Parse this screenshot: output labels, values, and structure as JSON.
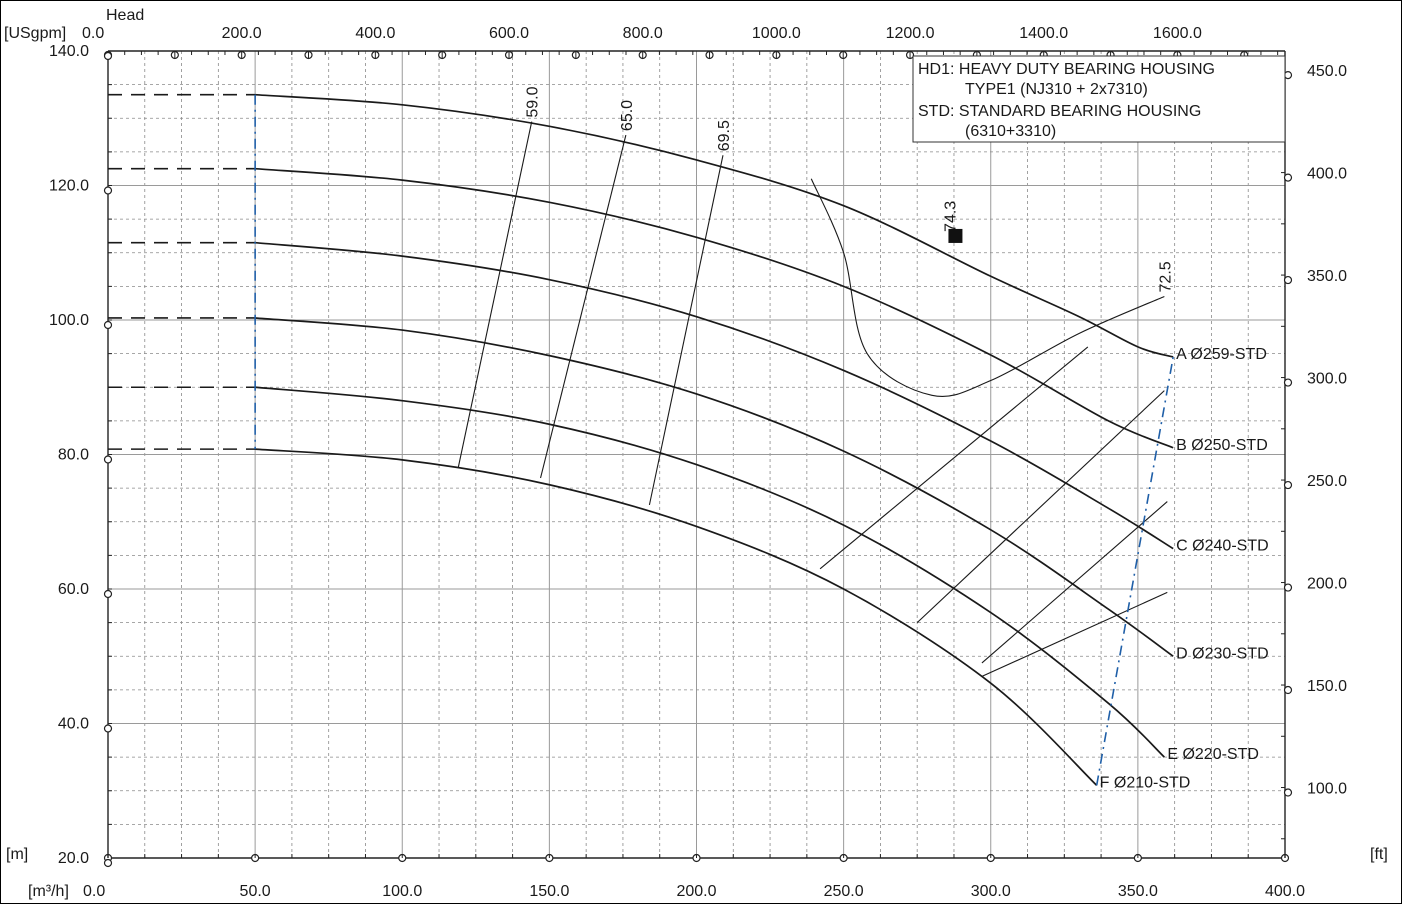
{
  "chart_data": {
    "type": "line",
    "title": "",
    "axes": {
      "x_bottom": {
        "unit": "[m³/h]",
        "range": [
          0,
          400
        ],
        "ticks": [
          "0.0",
          "50.0",
          "100.0",
          "150.0",
          "200.0",
          "250.0",
          "300.0",
          "350.0",
          "400.0"
        ]
      },
      "x_top": {
        "unit": "[USgpm]",
        "range": [
          0,
          1761
        ],
        "ticks": [
          "0.0",
          "200.0",
          "400.0",
          "600.0",
          "800.0",
          "1000.0",
          "1200.0",
          "1400.0",
          "1600.0"
        ]
      },
      "y_left": {
        "title": "Head",
        "unit": "[m]",
        "range": [
          20,
          140
        ],
        "ticks": [
          "20.0",
          "40.0",
          "60.0",
          "80.0",
          "100.0",
          "120.0",
          "140.0"
        ]
      },
      "y_right": {
        "unit": "[ft]",
        "ticks": [
          "100.0",
          "150.0",
          "200.0",
          "250.0",
          "300.0",
          "350.0",
          "400.0",
          "450.0"
        ]
      },
      "grid": true
    },
    "legend": {
      "placement": "top-right",
      "lines": [
        "HD1: HEAVY DUTY BEARING HOUSING",
        "TYPE1 (NJ310 + 2x7310)",
        "STD: STANDARD BEARING HOUSING",
        "(6310+3310)"
      ]
    },
    "series": [
      {
        "letter": "A",
        "label": "Ø259-STD",
        "x": [
          50,
          100,
          150,
          200,
          250,
          300,
          330,
          350,
          362
        ],
        "y": [
          133.5,
          132,
          128.8,
          123.8,
          117,
          106.5,
          100.5,
          96,
          94.5
        ]
      },
      {
        "letter": "B",
        "label": "Ø250-STD",
        "x": [
          50,
          100,
          150,
          200,
          250,
          300,
          340,
          362
        ],
        "y": [
          122.5,
          120.8,
          117.5,
          112.3,
          105,
          94.8,
          85,
          81
        ]
      },
      {
        "letter": "C",
        "label": "Ø240-STD",
        "x": [
          50,
          100,
          150,
          200,
          250,
          300,
          340,
          362
        ],
        "y": [
          111.5,
          109.5,
          106,
          100.5,
          92.5,
          82,
          72,
          66
        ]
      },
      {
        "letter": "D",
        "label": "Ø230-STD",
        "x": [
          50,
          100,
          150,
          200,
          250,
          300,
          340,
          362
        ],
        "y": [
          100.3,
          98.5,
          94.7,
          89,
          80.5,
          68.8,
          57,
          50
        ]
      },
      {
        "letter": "E",
        "label": "Ø220-STD",
        "x": [
          50,
          100,
          150,
          200,
          250,
          300,
          340,
          359
        ],
        "y": [
          90,
          88,
          84.5,
          78.5,
          69.5,
          56.5,
          43,
          35
        ]
      },
      {
        "letter": "F",
        "label": "Ø210-STD",
        "x": [
          50,
          100,
          150,
          200,
          250,
          300,
          336
        ],
        "y": [
          80.8,
          79.2,
          75.5,
          69.3,
          60,
          46,
          30.8
        ]
      }
    ],
    "efficiency_lines": [
      {
        "label": "59.0",
        "x": [
          119,
          144
        ],
        "y": [
          78,
          129.5
        ]
      },
      {
        "label": "65.0",
        "x": [
          147,
          176
        ],
        "y": [
          76.5,
          127.5
        ]
      },
      {
        "label": "69.5",
        "x": [
          184,
          209
        ],
        "y": [
          72.5,
          124.5
        ]
      },
      {
        "label": "72.5",
        "x": [
          239,
          250,
          258,
          280,
          300,
          330,
          359
        ],
        "y": [
          121,
          110,
          95,
          88.8,
          91,
          98,
          103.5
        ]
      },
      {
        "label": "74.3",
        "x": [
          288
        ],
        "y": [
          112.5
        ]
      }
    ],
    "bep_marker": {
      "x": 288,
      "y": 112.5
    },
    "extra_lines": [
      {
        "x": [
          242,
          333
        ],
        "y": [
          63,
          96
        ]
      },
      {
        "x": [
          275,
          359
        ],
        "y": [
          55,
          89.5
        ]
      },
      {
        "x": [
          297,
          360
        ],
        "y": [
          49,
          73
        ]
      },
      {
        "x": [
          297,
          360
        ],
        "y": [
          47,
          59.5
        ]
      }
    ],
    "operating_limits": {
      "min_flow": 50,
      "max_flow_line": {
        "x": [
          336,
          362
        ],
        "y": [
          30.8,
          94.5
        ]
      }
    }
  }
}
